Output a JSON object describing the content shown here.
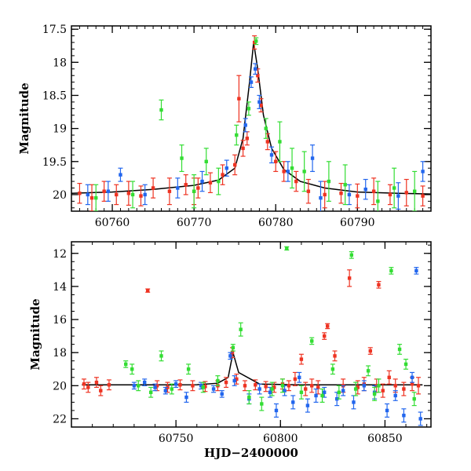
{
  "chart_data": [
    {
      "type": "scatter",
      "panel": "top",
      "title": "",
      "xlabel": "",
      "ylabel": "Magnitude",
      "xlim": [
        60755,
        60799
      ],
      "ylim": [
        20.25,
        17.45
      ],
      "y_inverted": true,
      "xticks": [
        60760,
        60770,
        60780,
        60790
      ],
      "yticks": [
        17.5,
        18,
        18.5,
        19,
        19.5,
        20
      ],
      "ytick_labels": [
        "17.5",
        "18",
        "18.5",
        "19",
        "19.5",
        "20"
      ],
      "grid": false,
      "model_curve": {
        "color": "#000000",
        "x": [
          60755,
          60760,
          60765,
          60770,
          60773,
          60775,
          60776,
          60776.8,
          60777.3,
          60777.8,
          60778.5,
          60779.5,
          60781,
          60783,
          60786,
          60790,
          60795,
          60799
        ],
        "y": [
          19.98,
          19.96,
          19.92,
          19.86,
          19.78,
          19.6,
          19.15,
          18.3,
          17.7,
          18.1,
          18.8,
          19.3,
          19.62,
          19.8,
          19.9,
          19.96,
          19.98,
          19.99
        ]
      },
      "series": [
        {
          "color": "#ee3322",
          "x": [
            60756,
            60757.5,
            60759,
            60760.5,
            60762,
            60763.5,
            60765,
            60767,
            60769,
            60770.5,
            60772,
            60773.5,
            60775,
            60776,
            60776.5,
            60777.4,
            60777.8,
            60778.2,
            60779,
            60780,
            60781,
            60782.5,
            60784,
            60786,
            60788,
            60790,
            60792,
            60794,
            60796,
            60798,
            60775.5,
            60770
          ],
          "y": [
            19.98,
            20.05,
            19.95,
            20.0,
            19.98,
            20.02,
            19.9,
            19.95,
            19.85,
            19.9,
            19.82,
            19.7,
            19.55,
            19.3,
            19.15,
            17.7,
            18.2,
            18.65,
            19.2,
            19.5,
            19.65,
            19.8,
            19.95,
            20.0,
            19.98,
            20.02,
            19.95,
            20.0,
            19.97,
            20.02,
            18.55,
            19.95
          ],
          "err": [
            0.15,
            0.2,
            0.15,
            0.15,
            0.18,
            0.15,
            0.15,
            0.2,
            0.15,
            0.15,
            0.15,
            0.15,
            0.15,
            0.12,
            0.1,
            0.1,
            0.1,
            0.1,
            0.12,
            0.15,
            0.15,
            0.15,
            0.18,
            0.2,
            0.15,
            0.18,
            0.2,
            0.15,
            0.2,
            0.15,
            0.35,
            0.2
          ]
        },
        {
          "color": "#2266ee",
          "x": [
            60757,
            60759.5,
            60761,
            60764,
            60768,
            60771,
            60774,
            60776.3,
            60777,
            60777.5,
            60778,
            60779.5,
            60781.5,
            60784.5,
            60785.5,
            60789,
            60791,
            60795,
            60798
          ],
          "y": [
            20.0,
            19.95,
            19.7,
            20.0,
            19.9,
            19.8,
            19.6,
            18.95,
            18.3,
            18.1,
            18.6,
            19.4,
            19.65,
            19.45,
            20.05,
            20.0,
            19.92,
            20.02,
            19.65
          ],
          "err": [
            0.15,
            0.15,
            0.1,
            0.15,
            0.15,
            0.15,
            0.12,
            0.1,
            0.08,
            0.08,
            0.1,
            0.12,
            0.15,
            0.2,
            0.25,
            0.15,
            0.15,
            0.2,
            0.15
          ]
        },
        {
          "color": "#33dd33",
          "x": [
            60758,
            60762.5,
            60766,
            60768.5,
            60770,
            60771.5,
            60773,
            60775.2,
            60776.7,
            60777.6,
            60778.8,
            60780.5,
            60782,
            60783.5,
            60786.5,
            60788.5,
            60792.5,
            60794.5,
            60797
          ],
          "y": [
            20.05,
            20.0,
            18.72,
            19.45,
            19.95,
            19.5,
            19.8,
            19.1,
            18.7,
            17.68,
            19.0,
            19.2,
            19.6,
            19.65,
            19.8,
            19.85,
            20.1,
            19.9,
            19.95
          ],
          "err": [
            0.2,
            0.2,
            0.15,
            0.2,
            0.25,
            0.2,
            0.2,
            0.15,
            0.1,
            0.05,
            0.15,
            0.3,
            0.3,
            0.3,
            0.3,
            0.3,
            0.3,
            0.3,
            0.3
          ]
        }
      ]
    },
    {
      "type": "scatter",
      "panel": "bottom",
      "title": "",
      "xlabel": "HJD−2400000",
      "ylabel": "Magnitude",
      "xlim": [
        60700,
        60872
      ],
      "ylim": [
        22.5,
        11.3
      ],
      "y_inverted": true,
      "xticks": [
        60750,
        60800,
        60850
      ],
      "yticks": [
        12,
        14,
        16,
        18,
        20,
        22
      ],
      "ytick_labels": [
        "12",
        "14",
        "16",
        "18",
        "20",
        "22"
      ],
      "grid": false,
      "model_curve": {
        "color": "#000000",
        "x": [
          60705,
          60720,
          60740,
          60760,
          60770,
          60775,
          60777.3,
          60780,
          60790,
          60810,
          60830,
          60850,
          60868
        ],
        "y": [
          19.95,
          19.95,
          19.95,
          19.94,
          19.85,
          19.5,
          18.0,
          19.2,
          19.9,
          19.95,
          19.95,
          19.95,
          19.95
        ]
      },
      "series": [
        {
          "color": "#ee3322",
          "x": [
            60706,
            60708,
            60712,
            60714,
            60718,
            60736.5,
            60741,
            60746,
            60752,
            60758,
            60764,
            60770,
            60774,
            60777,
            60779,
            60783,
            60788,
            60793,
            60797,
            60801,
            60804,
            60807,
            60810,
            60812,
            60815,
            60818,
            60821,
            60822.5,
            60826,
            60830,
            60833,
            60837,
            60840,
            60843,
            60846,
            60847,
            60849,
            60852,
            60855,
            60859,
            60863,
            60866
          ],
          "y": [
            19.9,
            20.1,
            19.8,
            20.3,
            19.95,
            14.25,
            20.0,
            20.1,
            19.95,
            20.0,
            20.05,
            20.0,
            19.8,
            18.0,
            19.6,
            20.0,
            19.95,
            20.05,
            20.1,
            19.9,
            20.0,
            19.6,
            18.4,
            20.2,
            20.0,
            20.1,
            17.0,
            16.4,
            18.2,
            20.0,
            13.5,
            20.1,
            19.9,
            17.9,
            20.0,
            13.9,
            20.3,
            19.5,
            20.0,
            20.2,
            19.9,
            20.0
          ],
          "err": [
            0.3,
            0.3,
            0.3,
            0.3,
            0.3,
            0.1,
            0.3,
            0.3,
            0.3,
            0.3,
            0.3,
            0.3,
            0.3,
            0.3,
            0.3,
            0.3,
            0.3,
            0.3,
            0.3,
            0.3,
            0.3,
            0.4,
            0.3,
            0.4,
            0.4,
            0.4,
            0.2,
            0.15,
            0.3,
            0.4,
            0.5,
            0.4,
            0.4,
            0.2,
            0.4,
            0.2,
            0.4,
            0.4,
            0.4,
            0.4,
            0.4,
            0.5
          ]
        },
        {
          "color": "#2266ee",
          "x": [
            60730,
            60735,
            60740,
            60745,
            60750,
            60755,
            60762,
            60768,
            60772,
            60776,
            60778,
            60785,
            60790,
            60795,
            60798,
            60802,
            60806,
            60809,
            60813,
            60817,
            60821,
            60827,
            60830,
            60835,
            60840,
            60845,
            60851,
            60855,
            60859,
            60863,
            60865,
            60867
          ],
          "y": [
            20.0,
            19.8,
            20.1,
            20.3,
            19.9,
            20.7,
            20.0,
            20.2,
            20.5,
            18.2,
            19.7,
            20.8,
            20.2,
            20.4,
            21.5,
            20.3,
            21.0,
            19.5,
            21.2,
            20.6,
            20.4,
            20.8,
            20.3,
            21.0,
            20.0,
            20.4,
            21.5,
            20.6,
            21.8,
            19.5,
            13.05,
            22.0
          ],
          "err": [
            0.2,
            0.2,
            0.2,
            0.2,
            0.2,
            0.3,
            0.2,
            0.2,
            0.2,
            0.2,
            0.3,
            0.3,
            0.3,
            0.3,
            0.4,
            0.3,
            0.4,
            0.3,
            0.4,
            0.4,
            0.3,
            0.4,
            0.3,
            0.4,
            0.3,
            0.4,
            0.4,
            0.3,
            0.4,
            0.3,
            0.2,
            0.4
          ]
        },
        {
          "color": "#33dd33",
          "x": [
            60726,
            60729,
            60732,
            60738,
            60743,
            60748,
            60756,
            60763,
            60770,
            60777.3,
            60781,
            60785,
            60791,
            60796,
            60801,
            60803,
            60810,
            60815,
            60820,
            60825,
            60828,
            60834,
            60836,
            60842,
            60845,
            60847,
            60853,
            60857,
            60860,
            60864
          ],
          "y": [
            18.7,
            19.0,
            20.0,
            20.4,
            18.2,
            20.2,
            19.0,
            20.1,
            19.7,
            17.7,
            16.6,
            20.7,
            21.1,
            20.2,
            20.0,
            11.7,
            20.4,
            17.3,
            20.6,
            19.0,
            20.4,
            12.1,
            20.2,
            19.1,
            20.5,
            20.0,
            13.05,
            17.8,
            18.7,
            20.8
          ],
          "err": [
            0.2,
            0.3,
            0.3,
            0.3,
            0.3,
            0.3,
            0.3,
            0.3,
            0.3,
            0.2,
            0.4,
            0.4,
            0.4,
            0.4,
            0.4,
            0.1,
            0.4,
            0.2,
            0.4,
            0.3,
            0.4,
            0.2,
            0.4,
            0.3,
            0.4,
            0.4,
            0.2,
            0.3,
            0.3,
            0.4
          ]
        }
      ]
    }
  ]
}
